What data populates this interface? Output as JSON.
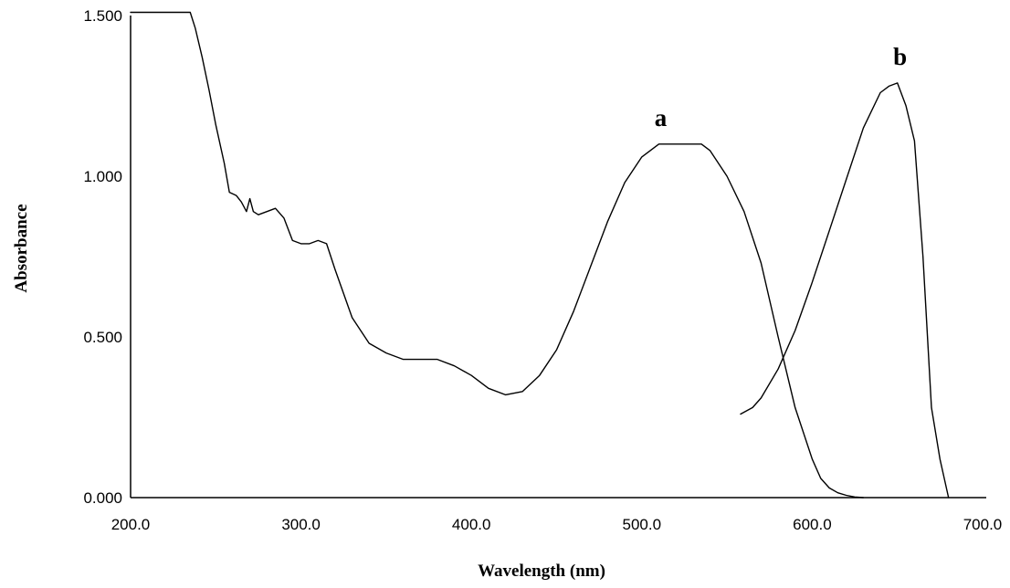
{
  "chart_data": {
    "type": "line",
    "title": "",
    "xlabel": "Wavelength (nm)",
    "ylabel": "Absorbance",
    "xlim": [
      200,
      700
    ],
    "ylim": [
      0,
      1.5
    ],
    "x_ticks": [
      "200.0",
      "300.0",
      "400.0",
      "500.0",
      "600.0",
      "700.0"
    ],
    "y_ticks": [
      "0.000",
      "0.500",
      "1.000",
      "1.500"
    ],
    "grid": false,
    "series": [
      {
        "name": "a",
        "x": [
          200,
          235,
          238,
          242,
          246,
          250,
          255,
          258,
          262,
          265,
          268,
          270,
          272,
          275,
          280,
          285,
          290,
          295,
          300,
          305,
          310,
          315,
          320,
          330,
          340,
          350,
          360,
          370,
          380,
          390,
          400,
          410,
          420,
          430,
          440,
          450,
          460,
          470,
          480,
          490,
          500,
          510,
          520,
          530,
          535,
          540,
          550,
          560,
          570,
          580,
          590,
          600,
          605,
          610,
          615,
          620,
          625,
          630
        ],
        "y": [
          1.51,
          1.51,
          1.46,
          1.37,
          1.27,
          1.16,
          1.04,
          0.95,
          0.94,
          0.92,
          0.89,
          0.93,
          0.89,
          0.88,
          0.89,
          0.9,
          0.87,
          0.8,
          0.79,
          0.79,
          0.8,
          0.79,
          0.71,
          0.56,
          0.48,
          0.45,
          0.43,
          0.43,
          0.43,
          0.41,
          0.38,
          0.34,
          0.32,
          0.33,
          0.38,
          0.46,
          0.58,
          0.72,
          0.86,
          0.98,
          1.06,
          1.1,
          1.1,
          1.1,
          1.1,
          1.08,
          1.0,
          0.89,
          0.73,
          0.5,
          0.28,
          0.12,
          0.06,
          0.03,
          0.015,
          0.007,
          0.002,
          0.0
        ]
      },
      {
        "name": "b",
        "x": [
          558,
          565,
          570,
          580,
          590,
          600,
          610,
          620,
          630,
          640,
          645,
          650,
          655,
          660,
          665,
          670,
          675,
          680
        ],
        "y": [
          0.26,
          0.28,
          0.31,
          0.4,
          0.52,
          0.67,
          0.83,
          0.99,
          1.15,
          1.26,
          1.28,
          1.29,
          1.22,
          1.11,
          0.75,
          0.28,
          0.12,
          0.0
        ]
      }
    ]
  }
}
